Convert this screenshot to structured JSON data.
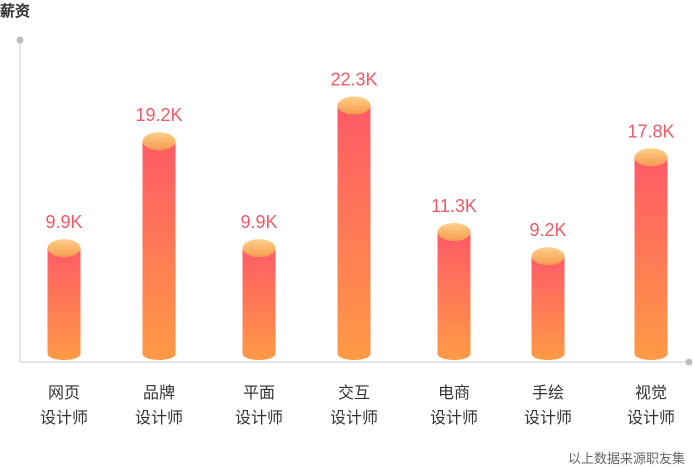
{
  "chart_data": {
    "type": "bar",
    "ylabel": "薪资",
    "categories": [
      [
        "网页",
        "设计师"
      ],
      [
        "品牌",
        "设计师"
      ],
      [
        "平面",
        "设计师"
      ],
      [
        "交互",
        "设计师"
      ],
      [
        "电商",
        "设计师"
      ],
      [
        "手绘",
        "设计师"
      ],
      [
        "视觉",
        "设计师"
      ]
    ],
    "values": [
      9.9,
      19.2,
      9.9,
      22.3,
      11.3,
      9.2,
      17.8
    ],
    "value_labels": [
      "9.9K",
      "19.2K",
      "9.9K",
      "22.3K",
      "11.3K",
      "9.2K",
      "17.8K"
    ],
    "ylim": [
      0,
      28
    ],
    "grid": false,
    "colors": {
      "bar_top": "#ff5a66",
      "bar_bottom": "#ff9a45",
      "cap_light": "#ffd08a",
      "cap_dark": "#f59a4e",
      "value_label": "#f05a68",
      "axis": "#c8c8c8"
    }
  },
  "footer": {
    "source": "以上数据来源职友集"
  }
}
